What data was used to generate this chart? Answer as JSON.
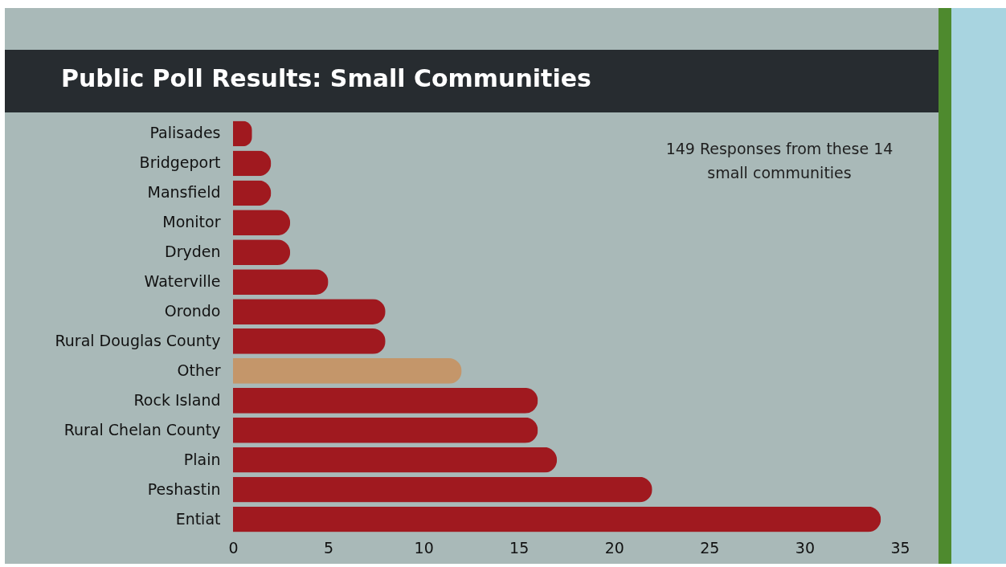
{
  "chart_data": {
    "type": "bar",
    "orientation": "horizontal",
    "title": "Public Poll Results: Small Communities",
    "categories": [
      "Palisades",
      "Bridgeport",
      "Mansfield",
      "Monitor",
      "Dryden",
      "Waterville",
      "Orondo",
      "Rural Douglas County",
      "Other",
      "Rock Island",
      "Rural Chelan County",
      "Plain",
      "Peshastin",
      "Entiat"
    ],
    "values": [
      1,
      2,
      2,
      3,
      3,
      5,
      8,
      8,
      12,
      16,
      16,
      17,
      22,
      34
    ],
    "colors": [
      "#a0191f",
      "#a0191f",
      "#a0191f",
      "#a0191f",
      "#a0191f",
      "#a0191f",
      "#a0191f",
      "#a0191f",
      "#c4966a",
      "#a0191f",
      "#a0191f",
      "#a0191f",
      "#a0191f",
      "#a0191f"
    ],
    "xlim": [
      0,
      35
    ],
    "xticks": [
      0,
      5,
      10,
      15,
      20,
      25,
      30,
      35
    ],
    "grid": false,
    "legend": false,
    "annotations": [
      "149 Responses from these 14 small communities"
    ]
  }
}
